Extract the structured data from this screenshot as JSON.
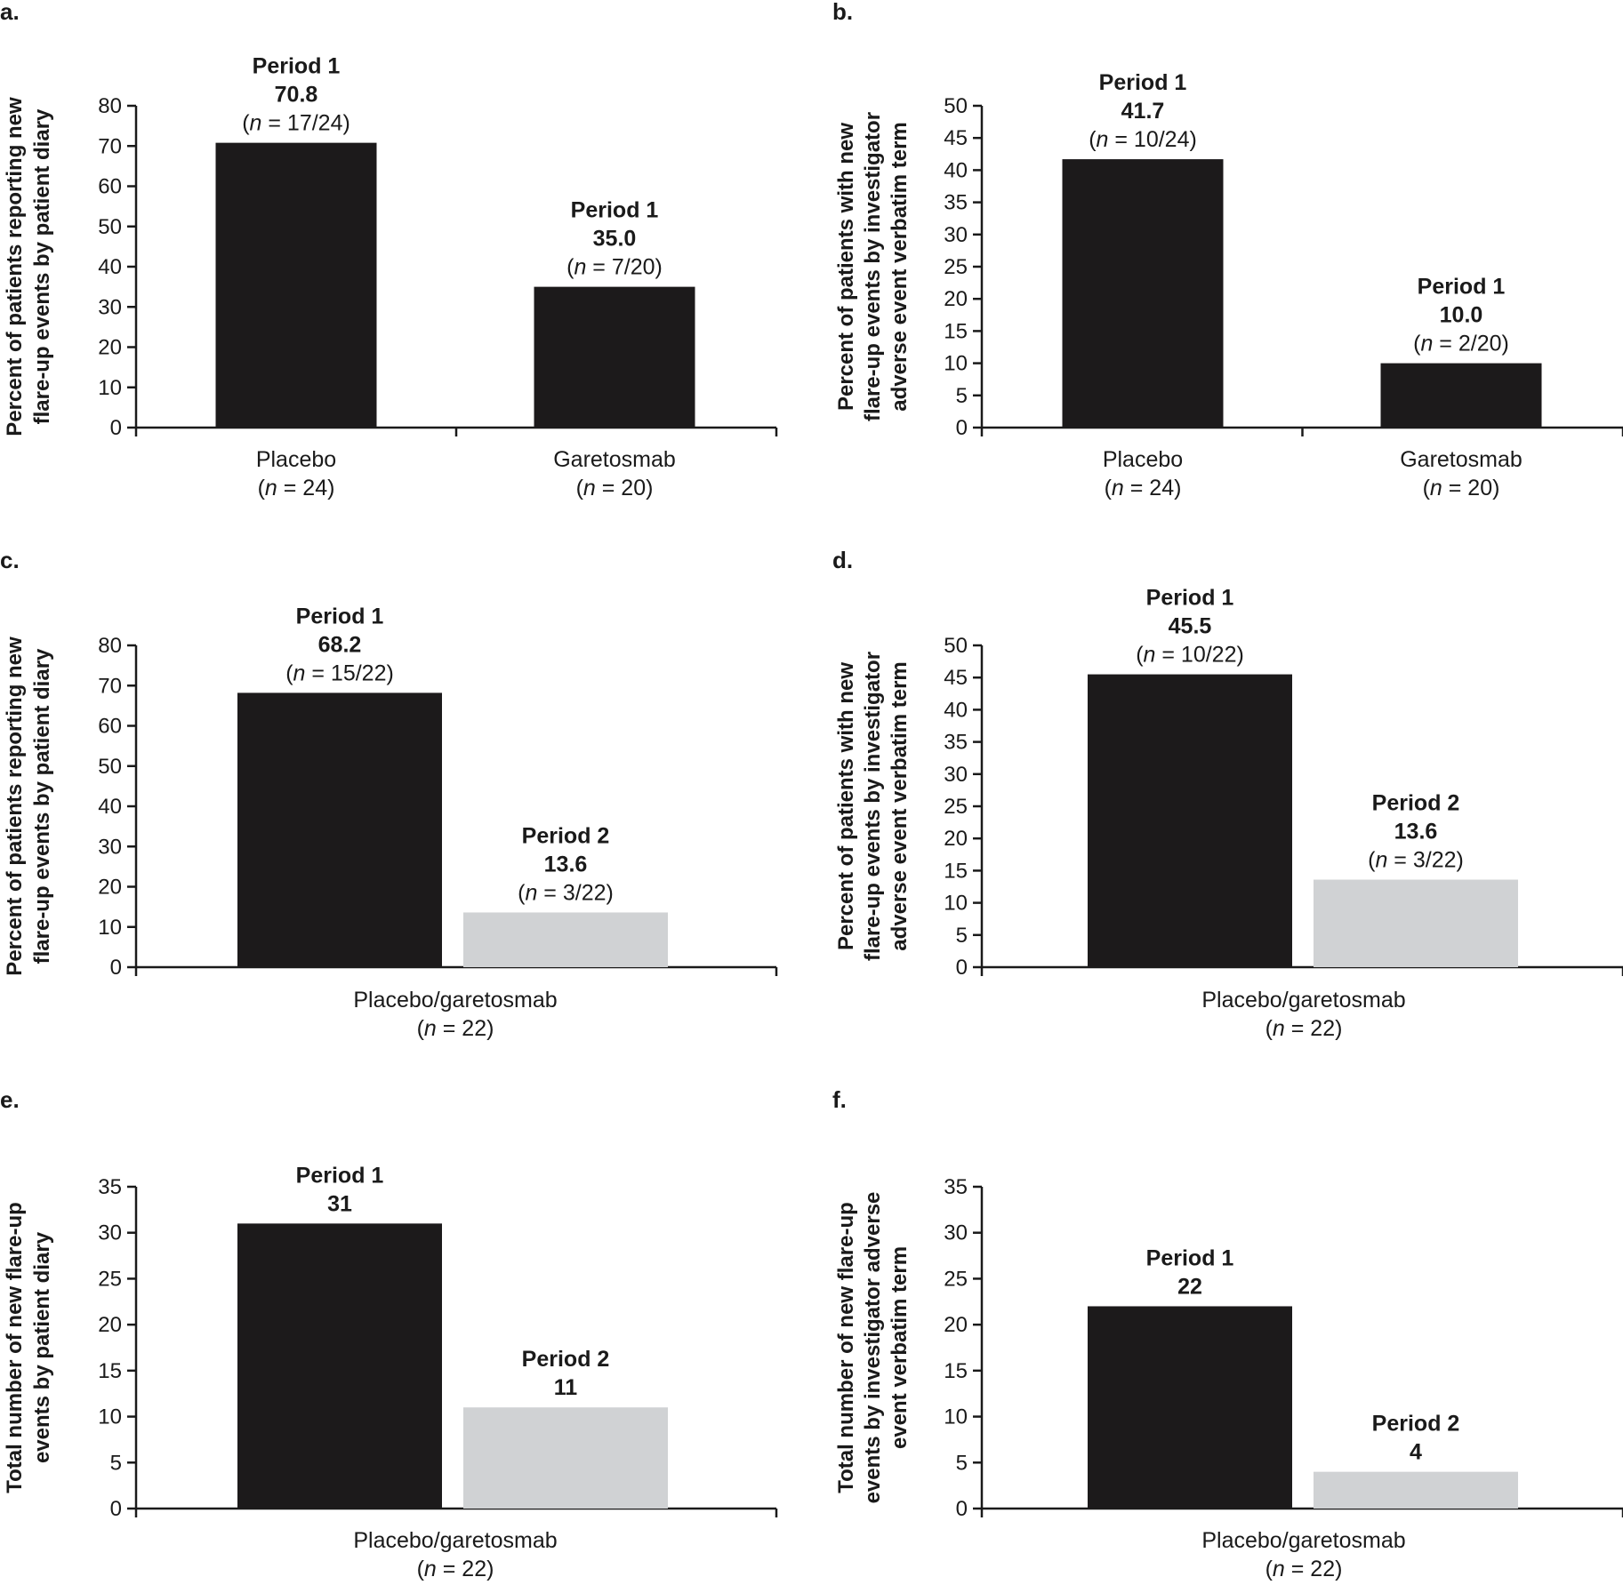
{
  "colors": {
    "period1": "#1c1a1b",
    "period2": "#d0d2d4",
    "axis": "#1a1a1a"
  },
  "chart_data": [
    {
      "id": "a",
      "letter": "a.",
      "type": "bar",
      "ylabel_lines": [
        "Percent of patients reporting new",
        "flare-up events by patient diary"
      ],
      "ylim": [
        0,
        80
      ],
      "yticks": [
        0,
        10,
        20,
        30,
        40,
        50,
        60,
        70,
        80
      ],
      "groups": [
        {
          "label": "Placebo",
          "nlabel": "24",
          "bars": [
            {
              "series": "period1",
              "value": 70.8,
              "ann": [
                "Period 1",
                "70.8"
              ],
              "n": "17/24"
            }
          ]
        },
        {
          "label": "Garetosmab",
          "nlabel": "20",
          "bars": [
            {
              "series": "period1",
              "value": 35.0,
              "ann": [
                "Period 1",
                "35.0"
              ],
              "n": "7/20"
            }
          ]
        }
      ]
    },
    {
      "id": "b",
      "letter": "b.",
      "type": "bar",
      "ylabel_lines": [
        "Percent of patients with new",
        "flare-up events by investigator",
        "adverse event verbatim term"
      ],
      "ylim": [
        0,
        50
      ],
      "yticks": [
        0,
        5,
        10,
        15,
        20,
        25,
        30,
        35,
        40,
        45,
        50
      ],
      "groups": [
        {
          "label": "Placebo",
          "nlabel": "24",
          "bars": [
            {
              "series": "period1",
              "value": 41.7,
              "ann": [
                "Period 1",
                "41.7"
              ],
              "n": "10/24"
            }
          ]
        },
        {
          "label": "Garetosmab",
          "nlabel": "20",
          "bars": [
            {
              "series": "period1",
              "value": 10.0,
              "ann": [
                "Period 1",
                "10.0"
              ],
              "n": "2/20"
            }
          ]
        }
      ]
    },
    {
      "id": "c",
      "letter": "c.",
      "type": "bar",
      "ylabel_lines": [
        "Percent of patients reporting new",
        "flare-up events by patient diary"
      ],
      "ylim": [
        0,
        80
      ],
      "yticks": [
        0,
        10,
        20,
        30,
        40,
        50,
        60,
        70,
        80
      ],
      "groups": [
        {
          "label": "Placebo/garetosmab",
          "nlabel": "22",
          "bars": [
            {
              "series": "period1",
              "value": 68.2,
              "ann": [
                "Period 1",
                "68.2"
              ],
              "n": "15/22"
            },
            {
              "series": "period2",
              "value": 13.6,
              "ann": [
                "Period 2",
                "13.6"
              ],
              "n": "3/22"
            }
          ]
        }
      ]
    },
    {
      "id": "d",
      "letter": "d.",
      "type": "bar",
      "ylabel_lines": [
        "Percent of patients with new",
        "flare-up events by investigator",
        "adverse event verbatim term"
      ],
      "ylim": [
        0,
        50
      ],
      "yticks": [
        0,
        5,
        10,
        15,
        20,
        25,
        30,
        35,
        40,
        45,
        50
      ],
      "groups": [
        {
          "label": "Placebo/garetosmab",
          "nlabel": "22",
          "bars": [
            {
              "series": "period1",
              "value": 45.5,
              "ann": [
                "Period 1",
                "45.5"
              ],
              "n": "10/22"
            },
            {
              "series": "period2",
              "value": 13.6,
              "ann": [
                "Period 2",
                "13.6"
              ],
              "n": "3/22"
            }
          ]
        }
      ]
    },
    {
      "id": "e",
      "letter": "e.",
      "type": "bar",
      "ylabel_lines": [
        "Total number of new flare-up",
        "events by patient diary"
      ],
      "ylim": [
        0,
        35
      ],
      "yticks": [
        0,
        5,
        10,
        15,
        20,
        25,
        30,
        35
      ],
      "groups": [
        {
          "label": "Placebo/garetosmab",
          "nlabel": "22",
          "bars": [
            {
              "series": "period1",
              "value": 31,
              "ann": [
                "Period 1",
                "31"
              ]
            },
            {
              "series": "period2",
              "value": 11,
              "ann": [
                "Period 2",
                "11"
              ]
            }
          ]
        }
      ]
    },
    {
      "id": "f",
      "letter": "f.",
      "type": "bar",
      "ylabel_lines": [
        "Total number of new flare-up",
        "events by investigator adverse",
        "event verbatim term"
      ],
      "ylim": [
        0,
        35
      ],
      "yticks": [
        0,
        5,
        10,
        15,
        20,
        25,
        30,
        35
      ],
      "groups": [
        {
          "label": "Placebo/garetosmab",
          "nlabel": "22",
          "bars": [
            {
              "series": "period1",
              "value": 22,
              "ann": [
                "Period 1",
                "22"
              ]
            },
            {
              "series": "period2",
              "value": 4,
              "ann": [
                "Period 2",
                "4"
              ]
            }
          ]
        }
      ]
    }
  ]
}
